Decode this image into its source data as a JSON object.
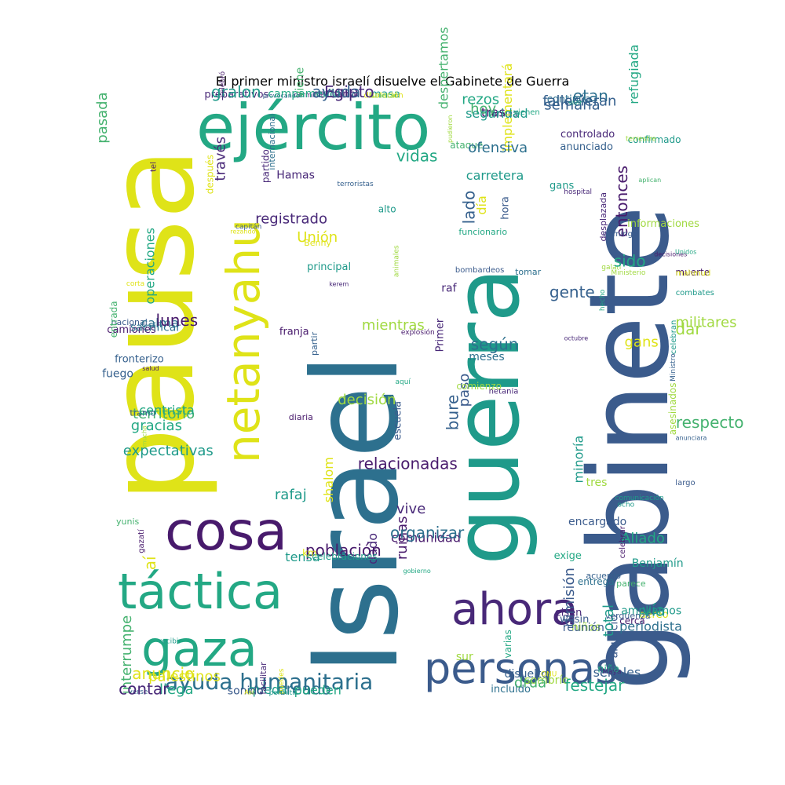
{
  "title": "El primer ministro israelí disuelve el Gabinete de Guerra",
  "palette": {
    "c1": "#3b5b8c",
    "c2": "#2d708e",
    "c3": "#23a884",
    "c4": "#45b26f",
    "c5": "#dfe318",
    "c6": "#482878",
    "c7": "#481a6c",
    "c8": "#1f9a8a",
    "c9": "#35608d",
    "c10": "#a0d940"
  },
  "words": [
    {
      "text": "Israel",
      "color": "c2",
      "rank": 1
    },
    {
      "text": "pausa",
      "color": "c5",
      "rank": 2
    },
    {
      "text": "gabinete",
      "color": "c1",
      "rank": 3
    },
    {
      "text": "guerra",
      "color": "c8",
      "rank": 4
    },
    {
      "text": "ejército",
      "color": "c3",
      "rank": 5
    },
    {
      "text": "netanyahu",
      "color": "c5",
      "rank": 6
    },
    {
      "text": "cosa",
      "color": "c7",
      "rank": 7
    },
    {
      "text": "táctica",
      "color": "c3",
      "rank": 8
    },
    {
      "text": "gaza",
      "color": "c3",
      "rank": 9
    },
    {
      "text": "ahora",
      "color": "c6",
      "rank": 10
    },
    {
      "text": "personas",
      "color": "c1",
      "rank": 11
    },
    {
      "text": "ayuda humanitaria",
      "color": "c2",
      "rank": 12
    }
  ],
  "small_words": [
    "gracias",
    "dormimos",
    "familia",
    "registrado",
    "pudieron",
    "gans",
    "mientras",
    "meses",
    "dar",
    "comunidad",
    "Aliado",
    "camiones",
    "aéreo",
    "niña",
    "queda",
    "recibir",
    "viene",
    "vienen",
    "después",
    "hospital",
    "hecho",
    "diaria",
    "paso",
    "Ministro",
    "shalom",
    "minoría",
    "nacional",
    "wesin",
    "sombrío",
    "sonido",
    "pasada",
    "cercano",
    "semana",
    "Benny",
    "gans",
    "decisiones",
    "kerem",
    "netania",
    "respecto",
    "ruinas",
    "encargado",
    "sacrificar",
    "niños",
    "drua",
    "creado",
    "entrada",
    "preparativos",
    "despertamos",
    "capitán",
    "carretera",
    "Ministerio",
    "escuela",
    "comienzo",
    "militares",
    "dado",
    "parece",
    "territorio",
    "cerca",
    "sur",
    "puedes",
    "operaciones",
    "provocando",
    "continúa",
    "partido",
    "hora",
    "entonces",
    "franja",
    "gente",
    "asesinados",
    "población",
    "entrega",
    "calma",
    "eisen",
    "anunció",
    "interrumpe",
    "corta",
    "masa",
    "tras",
    "Unión",
    "funcionario",
    "domingo",
    "principal",
    "Primer",
    "celebran",
    "gobierno",
    "acuerdo",
    "expectativas",
    "vergüenza",
    "varias",
    "pueden",
    "yunis",
    "gralon",
    "etan",
    "vidas",
    "implementará",
    "confirmado",
    "explosión",
    "raf",
    "anunciara",
    "tensa",
    "tres",
    "fuego",
    "ampliamos",
    "señales",
    "facilitar",
    "palestinos",
    "campamento",
    "rezos",
    "internacional",
    "ataque",
    "galan",
    "decisión",
    "según",
    "combates",
    "celebraciones",
    "ocho",
    "lunes",
    "vía",
    "festejar",
    "verse",
    "tramo",
    "celebró",
    "hoy",
    "alto",
    "ofensiva",
    "sido",
    "partir",
    "bure",
    "muerte",
    "vive",
    "celebrar",
    "salud",
    "total",
    "disuelto",
    "llega",
    "gazatí",
    "disolución",
    "seguridad",
    "rezando",
    "día",
    "informaciones",
    "animales",
    "bombardeos",
    "largo",
    "km",
    "exige",
    "centrista",
    "dimisión",
    "incluido",
    "Así",
    "tel",
    "funeral",
    "fallecieran",
    "Hamas",
    "controlado",
    "desplazada",
    "relacionadas",
    "tomar",
    "mahmud",
    "organizar",
    "Benjamín",
    "fronterizo",
    "reunión",
    "Maya",
    "permitir",
    "anuncio",
    "Egipto",
    "vivir",
    "través",
    "lado",
    "aplican",
    "aquí",
    "octubre",
    "Unidos",
    "rafaj",
    "comunicación",
    "mucha",
    "periodista",
    "ONU",
    "contar",
    "aí",
    "ayuda",
    "refugiada",
    "terroristas",
    "anunciado",
    "terrestre"
  ]
}
